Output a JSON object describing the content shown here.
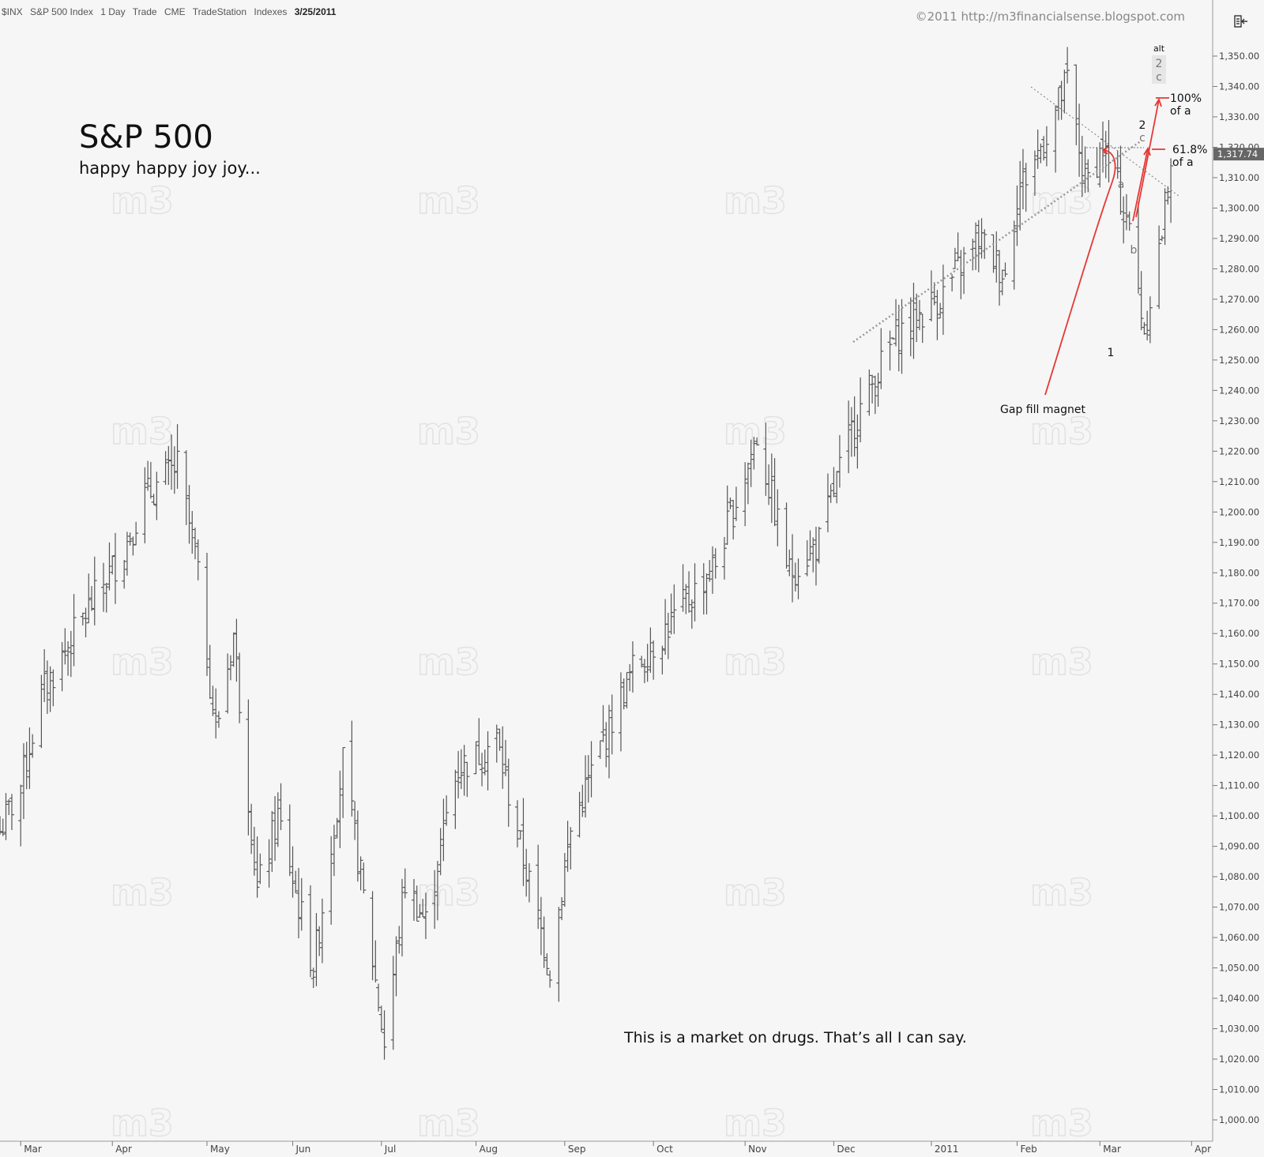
{
  "header": {
    "symbol": "$INX",
    "name": "S&P 500 Index",
    "interval": "1 Day",
    "type": "Trade",
    "exchange": "CME",
    "source": "TradeStation",
    "category": "Indexes",
    "date": "3/25/2011"
  },
  "copyright": "©2011 http://m3financialsense.blogspot.com",
  "watermark": "m3",
  "title": "S&P 500",
  "subtitle": "happy happy joy joy...",
  "comment": "This is a market on drugs. That’s all I can say.",
  "toolbar_icon": "panel-toggle-icon",
  "last_price": "1,317.74",
  "annotations": {
    "alt": "alt",
    "alt_2": "2",
    "alt_c": "c",
    "wave_2": "2",
    "wave_c": "c",
    "wave_a": "a",
    "wave_b": "b",
    "wave_1": "1",
    "fib_100": "100%",
    "fib_100_sub": "of a",
    "fib_618": "61.8%",
    "fib_618_sub": "of a",
    "gap_fill": "Gap fill magnet"
  },
  "colors": {
    "background": "#f6f6f6",
    "bars": "#555555",
    "arrows": "#e53935",
    "trendlines": "#999999",
    "price_tag": "#666666"
  },
  "chart_data": {
    "type": "bar",
    "style": "ohlc-bars",
    "grid": false,
    "ylim": [
      995,
      1357
    ],
    "y_ticks": [
      1000,
      1010,
      1020,
      1030,
      1040,
      1050,
      1060,
      1070,
      1080,
      1090,
      1100,
      1110,
      1120,
      1130,
      1140,
      1150,
      1160,
      1170,
      1180,
      1190,
      1200,
      1210,
      1220,
      1230,
      1240,
      1250,
      1260,
      1270,
      1280,
      1290,
      1300,
      1310,
      1320,
      1330,
      1340,
      1350
    ],
    "y_tick_labels": [
      "1,000.00",
      "1,010.00",
      "1,020.00",
      "1,030.00",
      "1,040.00",
      "1,050.00",
      "1,060.00",
      "1,070.00",
      "1,080.00",
      "1,090.00",
      "1,100.00",
      "1,110.00",
      "1,120.00",
      "1,130.00",
      "1,140.00",
      "1,150.00",
      "1,160.00",
      "1,170.00",
      "1,180.00",
      "1,190.00",
      "1,200.00",
      "1,210.00",
      "1,220.00",
      "1,230.00",
      "1,240.00",
      "1,250.00",
      "1,260.00",
      "1,270.00",
      "1,280.00",
      "1,290.00",
      "1,300.00",
      "1,310.00",
      "1,320.00",
      "1,330.00",
      "1,340.00",
      "1,350.00"
    ],
    "x_labels": [
      "Mar",
      "Apr",
      "May",
      "Jun",
      "Jul",
      "Aug",
      "Sep",
      "Oct",
      "Nov",
      "Dec",
      "2011",
      "Feb",
      "Mar",
      "Apr"
    ],
    "x_label_dates": [
      "2010-03-01",
      "2010-04-01",
      "2010-05-03",
      "2010-06-01",
      "2010-07-01",
      "2010-08-02",
      "2010-09-01",
      "2010-10-01",
      "2010-11-01",
      "2010-12-01",
      "2011-01-03",
      "2011-02-01",
      "2011-03-01",
      "2011-04-01"
    ],
    "x_start": "2010-02-22",
    "x_end": "2011-04-06",
    "last_price": 1317.74,
    "waypoints": [
      {
        "date": "2010-02-22",
        "close": 1095
      },
      {
        "date": "2010-03-01",
        "close": 1110
      },
      {
        "date": "2010-03-08",
        "close": 1140
      },
      {
        "date": "2010-03-22",
        "close": 1165
      },
      {
        "date": "2010-04-05",
        "close": 1188
      },
      {
        "date": "2010-04-12",
        "close": 1205
      },
      {
        "date": "2010-04-23",
        "close": 1215
      },
      {
        "date": "2010-04-29",
        "close": 1186
      },
      {
        "date": "2010-05-06",
        "close": 1128
      },
      {
        "date": "2010-05-12",
        "close": 1160
      },
      {
        "date": "2010-05-20",
        "close": 1075
      },
      {
        "date": "2010-05-27",
        "close": 1100
      },
      {
        "date": "2010-06-08",
        "close": 1050
      },
      {
        "date": "2010-06-18",
        "close": 1118
      },
      {
        "date": "2010-06-24",
        "close": 1080
      },
      {
        "date": "2010-07-02",
        "close": 1025
      },
      {
        "date": "2010-07-09",
        "close": 1078
      },
      {
        "date": "2010-07-16",
        "close": 1065
      },
      {
        "date": "2010-07-26",
        "close": 1115
      },
      {
        "date": "2010-08-09",
        "close": 1125
      },
      {
        "date": "2010-08-17",
        "close": 1090
      },
      {
        "date": "2010-08-27",
        "close": 1050
      },
      {
        "date": "2010-09-03",
        "close": 1095
      },
      {
        "date": "2010-09-14",
        "close": 1125
      },
      {
        "date": "2010-09-24",
        "close": 1148
      },
      {
        "date": "2010-10-08",
        "close": 1165
      },
      {
        "date": "2010-10-22",
        "close": 1183
      },
      {
        "date": "2010-11-05",
        "close": 1225
      },
      {
        "date": "2010-11-16",
        "close": 1180
      },
      {
        "date": "2010-11-26",
        "close": 1190
      },
      {
        "date": "2010-12-01",
        "close": 1207
      },
      {
        "date": "2010-12-08",
        "close": 1230
      },
      {
        "date": "2010-12-22",
        "close": 1258
      },
      {
        "date": "2011-01-07",
        "close": 1272
      },
      {
        "date": "2011-01-19",
        "close": 1290
      },
      {
        "date": "2011-01-28",
        "close": 1278
      },
      {
        "date": "2011-02-01",
        "close": 1305
      },
      {
        "date": "2011-02-10",
        "close": 1322
      },
      {
        "date": "2011-02-18",
        "close": 1342
      },
      {
        "date": "2011-02-24",
        "close": 1308
      },
      {
        "date": "2011-03-02",
        "close": 1320
      },
      {
        "date": "2011-03-10",
        "close": 1298
      },
      {
        "date": "2011-03-16",
        "close": 1260
      },
      {
        "date": "2011-03-22",
        "close": 1292
      },
      {
        "date": "2011-03-25",
        "close": 1317.74
      }
    ]
  }
}
